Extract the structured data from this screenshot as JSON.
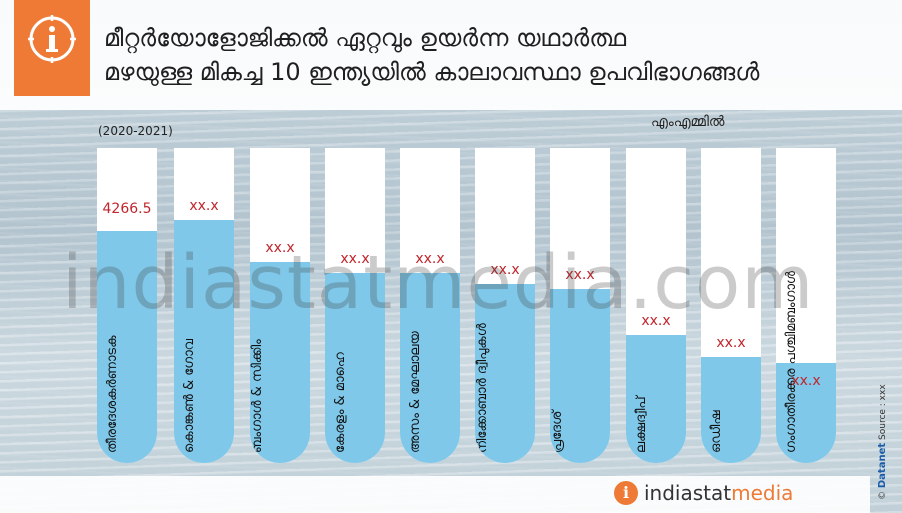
{
  "header": {
    "title_line1": "മീറ്റർയോളോജിക്കൽ ഏറ്റവും ഉയർന്ന യഥാർത്ഥ",
    "title_line2": "മഴയുള്ള മികച്ച 10 ഇന്ത്യയിൽ കാലാവസ്ഥാ ഉപവിഭാഗങ്ങൾ"
  },
  "icons": {
    "info_badge": "info-icon",
    "footer_logo": "info-icon"
  },
  "watermark": "indiastatmedia.com",
  "footer": {
    "logo_part1": "indiastat",
    "logo_part2": "media",
    "copyright": "©",
    "brand": "Datanet",
    "source": "Source : xxx"
  },
  "colors": {
    "accent": "#ee7a35",
    "bar_fill": "#7fc8ea",
    "tube": "#ffffff",
    "value_text": "#c0262c"
  },
  "chart_data": {
    "type": "bar",
    "title": "മീറ്റർയോളോജിക്കൽ ഏറ്റവും ഉയർന്ന യഥാർത്ഥ മഴയുള്ള മികച്ച 10 ഇന്ത്യയിൽ കാലാവസ്ഥാ ഉപവിഭാഗങ്ങൾ",
    "period": "(2020-2021)",
    "unit": "എംഎമ്മിൽ",
    "ylim": [
      0,
      5800
    ],
    "categories": [
      "തീരദേശകർണാടക",
      "കൊങ്കൺ & ഗോവ",
      "ഉപ-ഹിമാലയം പശ്ചിമ ബംഗാൾ & സിക്കിം",
      "കേരളം & മാഹെ",
      "അസം & മേഘാലയ",
      "ആൻഡമാൻ & നിക്കോബാർ ദ്വീപുകൾ",
      "അരുണാചൽ പ്രദേശ്",
      "ലക്ഷദ്വീപ്",
      "ഒഡീഷ",
      "ഗംഗാതീരക്കര പശ്ചിമബംഗാൾ"
    ],
    "label_lines": [
      [
        "തീരദേശകർണാടക"
      ],
      [
        "കൊങ്കൺ & ഗോവ"
      ],
      [
        "ഉപ-ഹിമാലയം പശ്ചിമ",
        "ബംഗാൾ & സിക്കിം"
      ],
      [
        "കേരളം & മാഹെ"
      ],
      [
        "അസം & മേഘാലയ"
      ],
      [
        "ആൻഡമാൻ &",
        "നിക്കോബാർ ദ്വീപുകൾ"
      ],
      [
        "അരുണാചൽ",
        "പ്രദേശ്"
      ],
      [
        "ലക്ഷദ്വീപ്"
      ],
      [
        "ഒഡീഷ"
      ],
      [
        "ഗംഗാതീരക്കര പശ്ചിമബംഗാൾ"
      ]
    ],
    "values": [
      4266.5,
      4470,
      3700,
      3500,
      3500,
      3300,
      3200,
      2350,
      1950,
      1850
    ],
    "value_labels": [
      "4266.5",
      "xx.x",
      "xx.x",
      "xx.x",
      "xx.x",
      "xx.x",
      "xx.x",
      "xx.x",
      "xx.x",
      "xx.x"
    ]
  }
}
